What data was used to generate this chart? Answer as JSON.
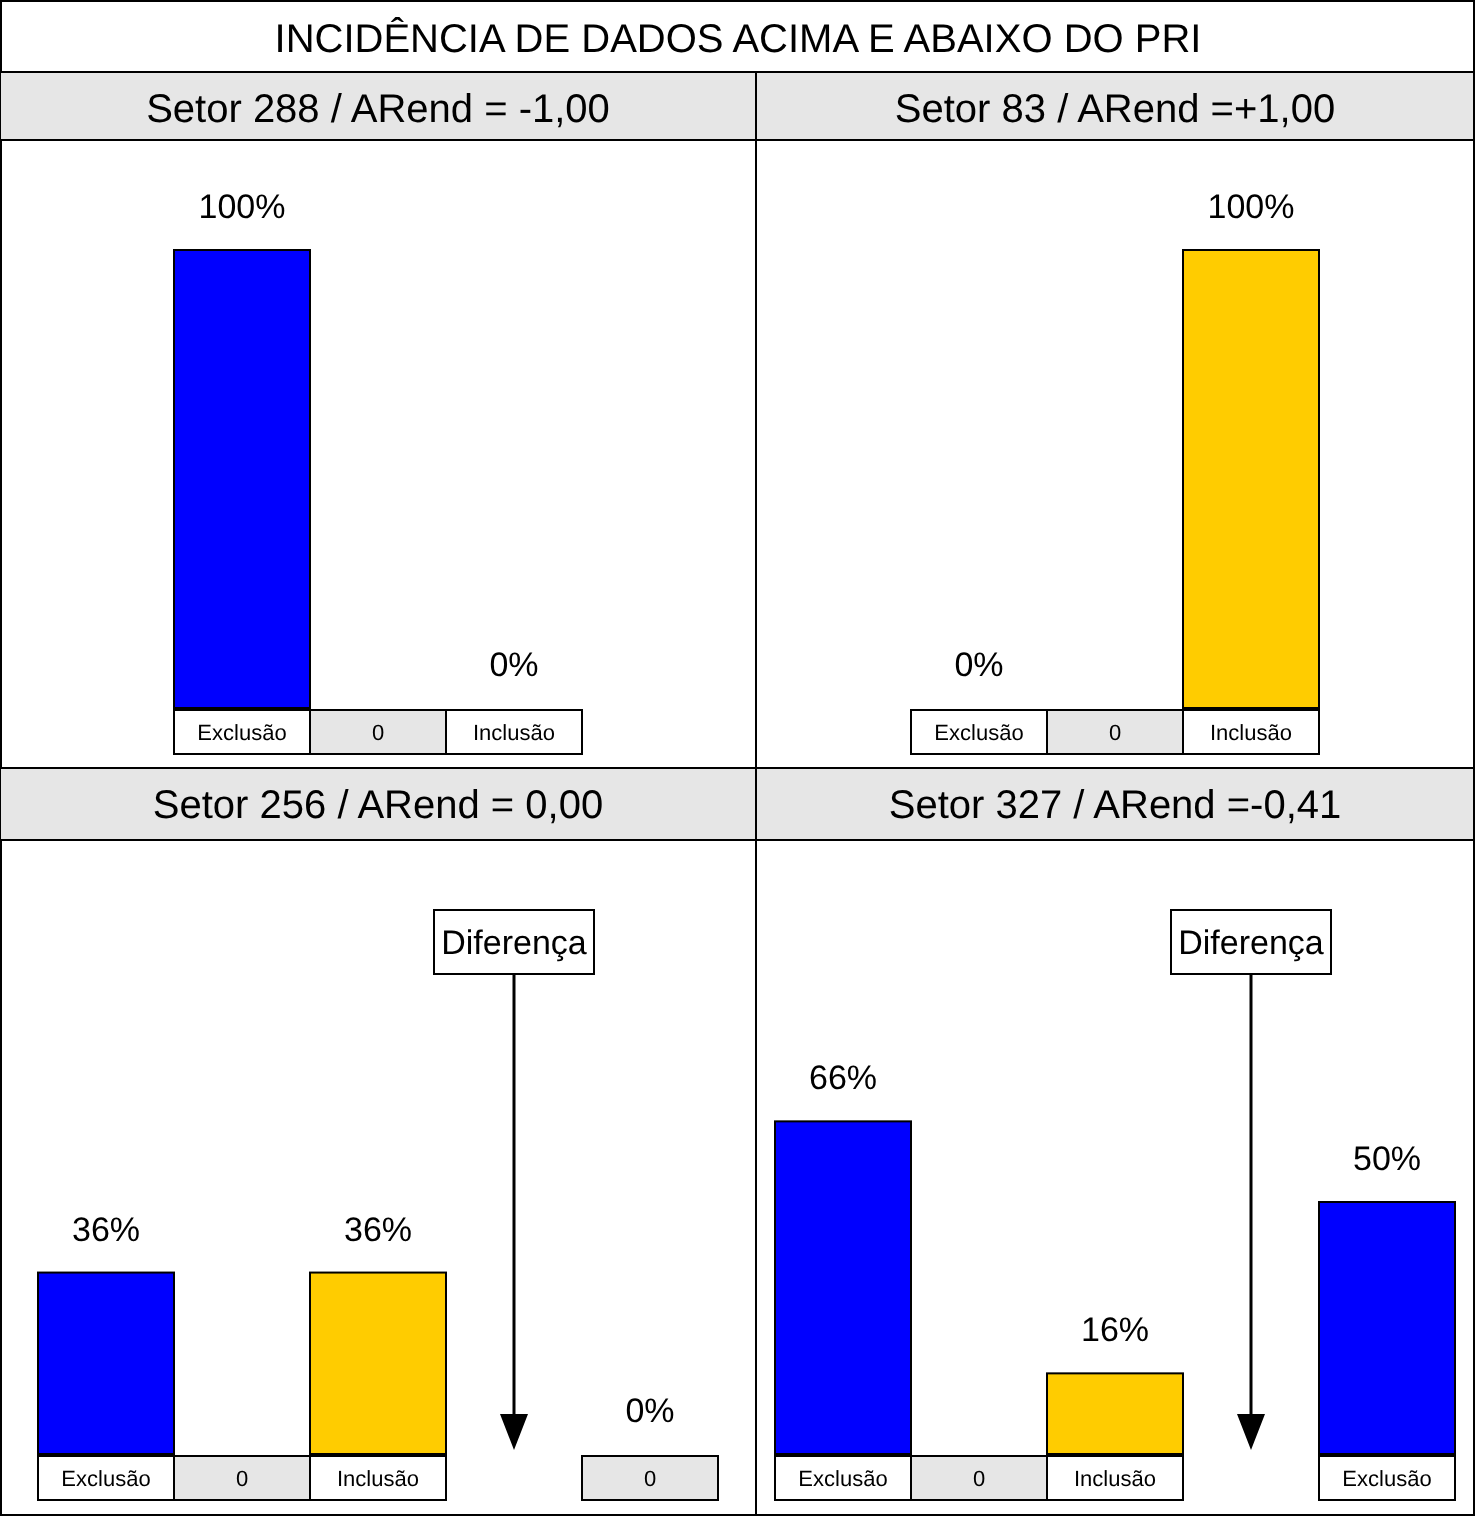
{
  "chart_data": [
    {
      "type": "other",
      "title": "INCIDÊNCIA DE DADOS ACIMA E ABAIXO DO PRI"
    },
    {
      "type": "bar",
      "title": "Setor 288 / ARend = -1,00",
      "categories": [
        "Exclusão",
        "0",
        "Inclusão"
      ],
      "values": [
        100,
        null,
        0
      ],
      "value_labels": [
        "100%",
        null,
        "0%"
      ],
      "colors": [
        "#0000ff",
        null,
        "#ffcc00"
      ]
    },
    {
      "type": "bar",
      "title": "Setor 83 / ARend =+1,00",
      "categories": [
        "Exclusão",
        "0",
        "Inclusão"
      ],
      "values": [
        0,
        null,
        100
      ],
      "value_labels": [
        "0%",
        null,
        "100%"
      ],
      "colors": [
        "#0000ff",
        null,
        "#ffcc00"
      ]
    },
    {
      "type": "bar",
      "title": "Setor 256 / ARend = 0,00",
      "categories": [
        "Exclusão",
        "0",
        "Inclusão",
        null,
        "0"
      ],
      "values": [
        36,
        null,
        36,
        null,
        0
      ],
      "value_labels": [
        "36%",
        null,
        "36%",
        null,
        "0%"
      ],
      "colors": [
        "#0000ff",
        null,
        "#ffcc00",
        null,
        null
      ],
      "annotations": [
        "Diferença"
      ]
    },
    {
      "type": "bar",
      "title": "Setor 327 / ARend =-0,41",
      "categories": [
        "Exclusão",
        "0",
        "Inclusão",
        null,
        "Exclusão"
      ],
      "values": [
        66,
        null,
        16,
        null,
        50
      ],
      "value_labels": [
        "66%",
        null,
        "16%",
        null,
        "50%"
      ],
      "colors": [
        "#0000ff",
        null,
        "#ffcc00",
        null,
        "#0000ff"
      ],
      "annotations": [
        "Diferença"
      ]
    }
  ]
}
